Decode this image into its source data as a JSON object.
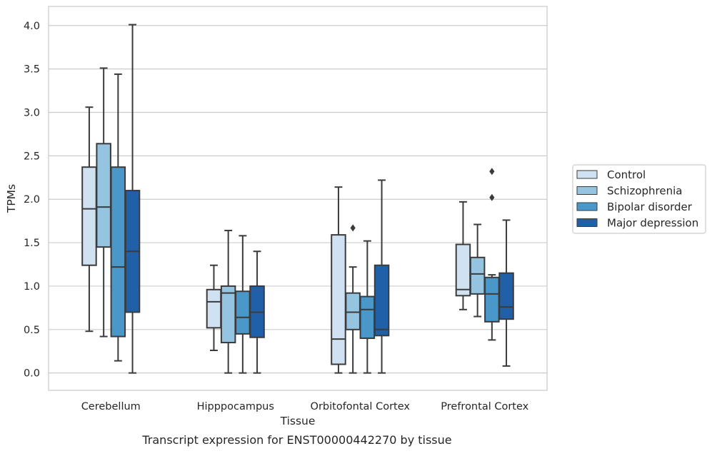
{
  "chart_data": {
    "type": "boxplot",
    "xlabel": "Tissue",
    "ylabel": "TPMs",
    "caption": "Transcript expression for ENST00000442270 by tissue",
    "ylim": [
      -0.2,
      4.22
    ],
    "yticks": [
      "0.0",
      "0.5",
      "1.0",
      "1.5",
      "2.0",
      "2.5",
      "3.0",
      "3.5",
      "4.0"
    ],
    "grid": true,
    "legend_position": "right",
    "categories": [
      "Cerebellum",
      "Hipppocampus",
      "Orbitofontal Cortex",
      "Prefrontal Cortex"
    ],
    "series": [
      {
        "name": "Control",
        "color": "#d0e1f2",
        "boxes": [
          {
            "whislo": 0.48,
            "q1": 1.24,
            "med": 1.89,
            "q3": 2.37,
            "whishi": 3.06,
            "fliers": []
          },
          {
            "whislo": 0.26,
            "q1": 0.52,
            "med": 0.82,
            "q3": 0.96,
            "whishi": 1.24,
            "fliers": []
          },
          {
            "whislo": 0.0,
            "q1": 0.1,
            "med": 0.39,
            "q3": 1.59,
            "whishi": 2.14,
            "fliers": []
          },
          {
            "whislo": 0.73,
            "q1": 0.89,
            "med": 0.96,
            "q3": 1.48,
            "whishi": 1.97,
            "fliers": []
          }
        ]
      },
      {
        "name": "Schizophrenia",
        "color": "#94c4df",
        "boxes": [
          {
            "whislo": 0.42,
            "q1": 1.45,
            "med": 1.91,
            "q3": 2.64,
            "whishi": 3.51,
            "fliers": []
          },
          {
            "whislo": 0.0,
            "q1": 0.35,
            "med": 0.92,
            "q3": 1.0,
            "whishi": 1.64,
            "fliers": []
          },
          {
            "whislo": 0.0,
            "q1": 0.5,
            "med": 0.7,
            "q3": 0.92,
            "whishi": 1.22,
            "fliers": [
              1.67
            ]
          },
          {
            "whislo": 0.65,
            "q1": 0.91,
            "med": 1.14,
            "q3": 1.33,
            "whishi": 1.71,
            "fliers": []
          }
        ]
      },
      {
        "name": "Bipolar disorder",
        "color": "#4a98c9",
        "boxes": [
          {
            "whislo": 0.14,
            "q1": 0.42,
            "med": 1.22,
            "q3": 2.37,
            "whishi": 3.44,
            "fliers": []
          },
          {
            "whislo": 0.0,
            "q1": 0.45,
            "med": 0.64,
            "q3": 0.94,
            "whishi": 1.58,
            "fliers": []
          },
          {
            "whislo": 0.0,
            "q1": 0.4,
            "med": 0.73,
            "q3": 0.88,
            "whishi": 1.52,
            "fliers": []
          },
          {
            "whislo": 0.38,
            "q1": 0.59,
            "med": 0.91,
            "q3": 1.1,
            "whishi": 1.13,
            "fliers": [
              2.02,
              2.32
            ]
          }
        ]
      },
      {
        "name": "Major depression",
        "color": "#2060a8",
        "boxes": [
          {
            "whislo": 0.0,
            "q1": 0.7,
            "med": 1.4,
            "q3": 2.1,
            "whishi": 4.01,
            "fliers": []
          },
          {
            "whislo": 0.0,
            "q1": 0.41,
            "med": 0.7,
            "q3": 1.0,
            "whishi": 1.4,
            "fliers": []
          },
          {
            "whislo": 0.0,
            "q1": 0.43,
            "med": 0.5,
            "q3": 1.24,
            "whishi": 2.22,
            "fliers": []
          },
          {
            "whislo": 0.08,
            "q1": 0.62,
            "med": 0.76,
            "q3": 1.15,
            "whishi": 1.76,
            "fliers": []
          }
        ]
      }
    ]
  }
}
